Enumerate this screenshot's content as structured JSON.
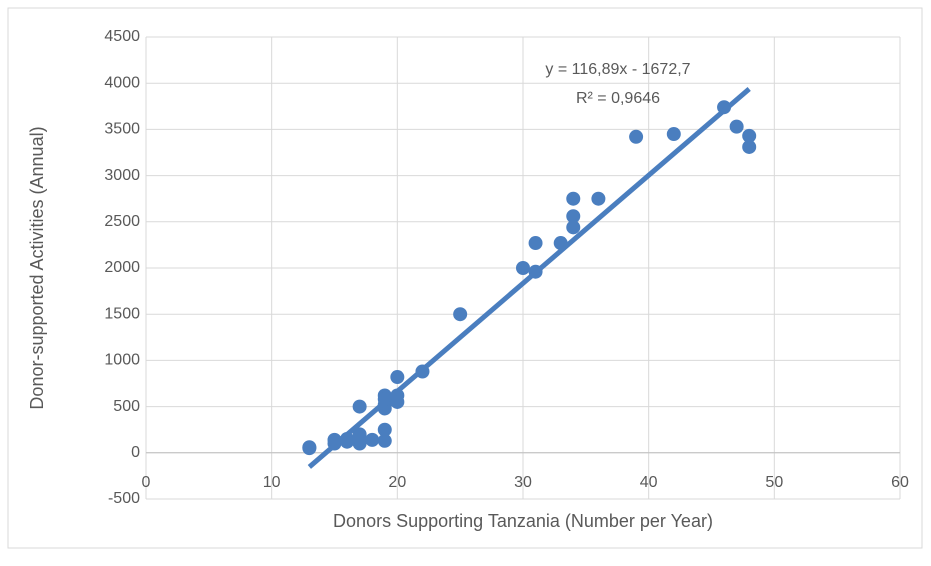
{
  "chart_data": {
    "type": "scatter",
    "x_label": "Donors Supporting Tanzania (Number per Year)",
    "y_label": "Donor-supported Activities (Annual)",
    "series": [
      {
        "color": "#4a7ebf",
        "x": [
          13,
          13,
          15,
          15,
          16,
          16,
          17,
          17,
          17,
          17,
          18,
          19,
          19,
          19,
          19,
          19,
          19,
          20,
          20,
          20,
          22,
          25,
          30,
          31,
          31,
          33,
          34,
          34,
          34,
          36,
          39,
          42,
          46,
          47,
          48,
          48
        ],
        "values": [
          60,
          50,
          140,
          100,
          120,
          150,
          500,
          200,
          100,
          150,
          140,
          130,
          250,
          480,
          520,
          620,
          580,
          550,
          620,
          820,
          880,
          1500,
          2000,
          1960,
          2270,
          2270,
          2440,
          2560,
          2750,
          2750,
          3420,
          3450,
          3740,
          3530,
          3430,
          3310
        ]
      }
    ],
    "trendline": {
      "slope": 116.89,
      "intercept": -1672.7,
      "color": "#4a7ebf",
      "label": "y = 116,89x - 1672,7",
      "r2_label": "R² = 0,9646"
    },
    "xlim": [
      0,
      60
    ],
    "xticks": [
      0,
      10,
      20,
      30,
      40,
      50,
      60
    ],
    "ylim": [
      -500,
      4500
    ],
    "yticks": [
      -500,
      0,
      500,
      1000,
      1500,
      2000,
      2500,
      3000,
      3500,
      4000,
      4500
    ],
    "grid": true
  }
}
